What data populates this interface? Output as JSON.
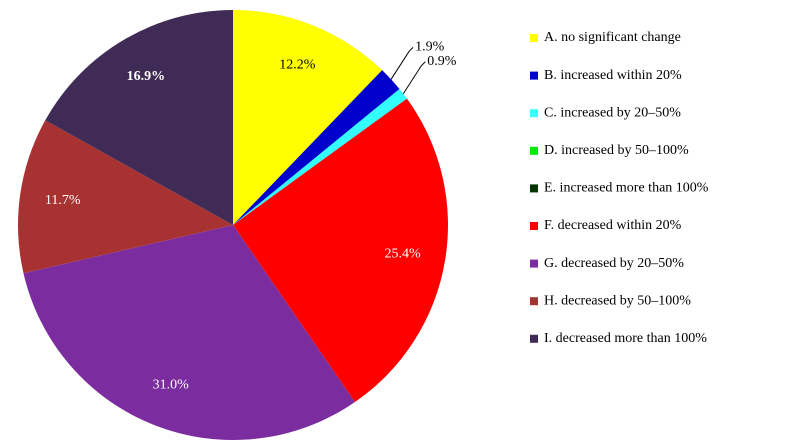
{
  "chart_data": {
    "type": "pie",
    "categories": [
      "A. no significant change",
      "B. increased within 20%",
      "C. increased by 20–50%",
      "D. increased by 50–100%",
      "E. increased more than 100%",
      "F. decreased within 20%",
      "G. decreased by 20–50%",
      "H. decreased by 50–100%",
      "I. decreased more than 100%"
    ],
    "values": [
      12.2,
      1.9,
      0.9,
      0,
      0,
      25.4,
      31.0,
      11.7,
      16.9
    ],
    "value_labels": [
      "12.2%",
      "1.9%",
      "0.9%",
      null,
      null,
      "25.4%",
      "31.0%",
      "11.7%",
      "16.9%"
    ],
    "colors": [
      "#ffff00",
      "#0000cc",
      "#33ffff",
      "#00ee00",
      "#003300",
      "#ff0000",
      "#7b2d9f",
      "#a83232",
      "#3f2b55"
    ],
    "legend": "right"
  }
}
